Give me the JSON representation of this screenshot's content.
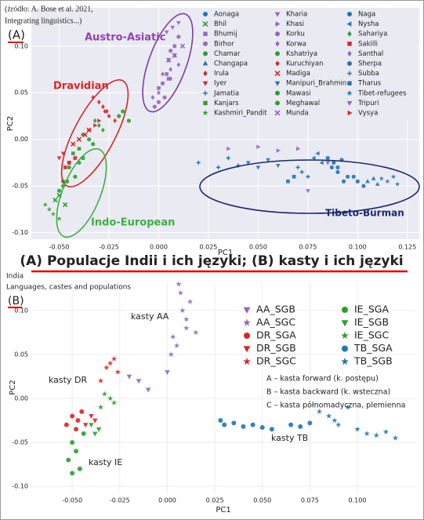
{
  "source_note": [
    "(źródło: A. Bose et al. 2021,",
    "Integrating linguistics...)"
  ],
  "panel_labels": [
    "(A)",
    "(B)"
  ],
  "caption": "(A) Populacje Indii i ich języki; (B) kasty i ich języki",
  "chart_data": [
    {
      "type": "scatter",
      "x_label": "PC1",
      "y_label": "PC2",
      "grid": true,
      "xlim": [
        -0.064,
        0.131
      ],
      "ylim": [
        -0.107,
        0.141
      ],
      "xticks": [
        {
          "value": -0.05,
          "label": "-0.050"
        },
        {
          "value": -0.025,
          "label": "-0.025"
        },
        {
          "value": 0,
          "label": "0.000"
        },
        {
          "value": 0.025,
          "label": "0.025"
        },
        {
          "value": 0.05,
          "label": "0.050"
        },
        {
          "value": 0.075,
          "label": "0.075"
        },
        {
          "value": 0.1,
          "label": "0.100"
        },
        {
          "value": 0.125,
          "label": "0.125"
        }
      ],
      "yticks": [
        {
          "value": -0.1,
          "label": "-0.10"
        },
        {
          "value": -0.05,
          "label": "-0.05"
        },
        {
          "value": 0,
          "label": "0.00"
        },
        {
          "value": 0.05,
          "label": "0.05"
        },
        {
          "value": 0.1,
          "label": "0.10"
        }
      ],
      "annotations": [
        {
          "text": "Austro-Asiatic",
          "color": "#8e44ad"
        },
        {
          "text": "Dravidian",
          "color": "#d62728"
        },
        {
          "text": "Indo-European",
          "color": "#3cb043"
        },
        {
          "text": "Tibeto-Burman",
          "color": "#1a2a6c"
        }
      ],
      "series": [
        {
          "name": "Aonaga",
          "color": "#1f77b4",
          "marker": "circle",
          "x": [
            0.085,
            0.088,
            0.092,
            0.09
          ],
          "values": [
            -0.02,
            -0.025,
            -0.022,
            -0.03
          ]
        },
        {
          "name": "Bhil",
          "color": "#2ca02c",
          "marker": "x",
          "x": [
            -0.05,
            -0.047,
            -0.052
          ],
          "values": [
            -0.06,
            -0.07,
            -0.065
          ]
        },
        {
          "name": "Bhumij",
          "color": "#9467bd",
          "marker": "square",
          "x": [
            0.002,
            0.005,
            0.0,
            0.004
          ],
          "values": [
            0.06,
            0.065,
            0.055,
            0.07
          ]
        },
        {
          "name": "Birhor",
          "color": "#9467bd",
          "marker": "circle",
          "x": [
            0.008,
            0.01,
            0.006
          ],
          "values": [
            0.1,
            0.11,
            0.095
          ]
        },
        {
          "name": "Chamar",
          "color": "#2ca02c",
          "marker": "circle",
          "x": [
            -0.045,
            -0.042,
            -0.048,
            -0.04
          ],
          "values": [
            -0.03,
            -0.04,
            -0.045,
            -0.025
          ]
        },
        {
          "name": "Changapa",
          "color": "#1f77b4",
          "marker": "tri-up",
          "x": [
            0.105,
            0.11,
            0.108
          ],
          "values": [
            -0.045,
            -0.048,
            -0.042
          ]
        },
        {
          "name": "Irula",
          "color": "#d62728",
          "marker": "diamond",
          "x": [
            -0.03,
            -0.028,
            -0.033,
            -0.026
          ],
          "values": [
            0.04,
            0.035,
            0.045,
            0.03
          ]
        },
        {
          "name": "Iyer",
          "color": "#d62728",
          "marker": "tri-down",
          "x": [
            -0.05,
            -0.048,
            -0.045
          ],
          "values": [
            -0.02,
            -0.015,
            -0.025
          ]
        },
        {
          "name": "Jamatia",
          "color": "#1f77b4",
          "marker": "plus",
          "x": [
            0.02,
            0.03,
            0.035,
            0.04
          ],
          "values": [
            -0.025,
            -0.03,
            -0.02,
            -0.028
          ]
        },
        {
          "name": "Kanjars",
          "color": "#2ca02c",
          "marker": "square",
          "x": [
            -0.04,
            -0.038,
            -0.043
          ],
          "values": [
            -0.01,
            -0.02,
            -0.015
          ]
        },
        {
          "name": "Kashmiri_Pandit",
          "color": "#2ca02c",
          "marker": "star",
          "x": [
            -0.055,
            -0.053,
            -0.05,
            -0.057
          ],
          "values": [
            -0.075,
            -0.08,
            -0.085,
            -0.07
          ]
        },
        {
          "name": "Kharia",
          "color": "#9467bd",
          "marker": "tri-down",
          "x": [
            0.007,
            0.01,
            0.004
          ],
          "values": [
            0.12,
            0.125,
            0.115
          ]
        },
        {
          "name": "Khasi",
          "color": "#9467bd",
          "marker": "tri-right",
          "x": [
            0.035,
            0.05,
            0.06,
            0.07
          ],
          "values": [
            -0.01,
            -0.008,
            -0.012,
            -0.01
          ]
        },
        {
          "name": "Korku",
          "color": "#9467bd",
          "marker": "circle",
          "x": [
            0.0,
            -0.002,
            0.003
          ],
          "values": [
            0.04,
            0.035,
            0.045
          ]
        },
        {
          "name": "Korwa",
          "color": "#9467bd",
          "marker": "diamond",
          "x": [
            0.005,
            0.008,
            0.01,
            0.006
          ],
          "values": [
            0.085,
            0.09,
            0.08,
            0.075
          ]
        },
        {
          "name": "Kshatriya",
          "color": "#2ca02c",
          "marker": "circle",
          "x": [
            -0.035,
            -0.033,
            -0.038
          ],
          "values": [
            0.0,
            -0.005,
            0.005
          ]
        },
        {
          "name": "Kuruchiyan",
          "color": "#d62728",
          "marker": "diamond",
          "x": [
            -0.025,
            -0.022,
            -0.027
          ],
          "values": [
            0.025,
            0.02,
            0.03
          ]
        },
        {
          "name": "Madiga",
          "color": "#d62728",
          "marker": "x",
          "x": [
            -0.04,
            -0.037,
            -0.043,
            -0.035
          ],
          "values": [
            0.0,
            0.005,
            -0.005,
            0.01
          ]
        },
        {
          "name": "Manipuri_Brahmin",
          "color": "#1f77b4",
          "marker": "tri-down",
          "x": [
            0.045,
            0.05,
            0.055,
            0.06
          ],
          "values": [
            -0.025,
            -0.03,
            -0.022,
            -0.028
          ]
        },
        {
          "name": "Mawasi",
          "color": "#2ca02c",
          "marker": "circle",
          "x": [
            -0.02,
            -0.018,
            -0.015
          ],
          "values": [
            0.025,
            0.03,
            0.02
          ]
        },
        {
          "name": "Meghawal",
          "color": "#2ca02c",
          "marker": "circle",
          "x": [
            -0.048,
            -0.05,
            -0.046
          ],
          "values": [
            -0.05,
            -0.055,
            -0.045
          ]
        },
        {
          "name": "Munda",
          "color": "#9467bd",
          "marker": "x",
          "x": [
            0.008,
            0.012,
            0.005
          ],
          "values": [
            0.09,
            0.1,
            0.085
          ]
        },
        {
          "name": "Naga",
          "color": "#1f77b4",
          "marker": "circle",
          "x": [
            0.09,
            0.095,
            0.087,
            0.093
          ],
          "values": [
            -0.035,
            -0.04,
            -0.03,
            -0.045
          ]
        },
        {
          "name": "Nysha",
          "color": "#1f77b4",
          "marker": "tri-left",
          "x": [
            0.078,
            0.08,
            0.082
          ],
          "values": [
            -0.02,
            -0.015,
            -0.025
          ]
        },
        {
          "name": "Sahariya",
          "color": "#2ca02c",
          "marker": "diamond",
          "x": [
            -0.03,
            -0.028,
            -0.032
          ],
          "values": [
            0.015,
            0.01,
            0.02
          ]
        },
        {
          "name": "Sakilli",
          "color": "#d62728",
          "marker": "square",
          "x": [
            -0.045,
            -0.042,
            -0.047
          ],
          "values": [
            -0.025,
            -0.02,
            -0.03
          ]
        },
        {
          "name": "Santhal",
          "color": "#9467bd",
          "marker": "diamond",
          "x": [
            0.0,
            0.002,
            0.006,
            -0.003
          ],
          "values": [
            0.05,
            0.07,
            0.065,
            0.045
          ]
        },
        {
          "name": "Sherpa",
          "color": "#1f77b4",
          "marker": "circle",
          "x": [
            0.1,
            0.103,
            0.098
          ],
          "values": [
            -0.045,
            -0.05,
            -0.04
          ]
        },
        {
          "name": "Subba",
          "color": "#1f77b4",
          "marker": "plus",
          "x": [
            0.07,
            0.072,
            0.075
          ],
          "values": [
            -0.03,
            -0.035,
            -0.04
          ]
        },
        {
          "name": "Tharus",
          "color": "#1f77b4",
          "marker": "square",
          "x": [
            0.065,
            0.068
          ],
          "values": [
            -0.045,
            -0.04
          ]
        },
        {
          "name": "Tibet-refugees",
          "color": "#1f77b4",
          "marker": "star",
          "x": [
            0.112,
            0.115,
            0.118,
            0.12
          ],
          "values": [
            -0.042,
            -0.045,
            -0.04,
            -0.048
          ]
        },
        {
          "name": "Tripuri",
          "color": "#9467bd",
          "marker": "tri-down",
          "x": [
            0.085,
            0.075
          ],
          "values": [
            -0.025,
            -0.055
          ]
        },
        {
          "name": "Vysya",
          "color": "#d62728",
          "marker": "tri-right",
          "x": [
            -0.035,
            -0.032,
            -0.03
          ],
          "values": [
            0.01,
            0.015,
            0.02
          ]
        }
      ]
    },
    {
      "type": "scatter",
      "title": "India",
      "subtitle": "Languages, castes and populations",
      "x_label": "PC1",
      "y_label": "PC2",
      "grid": true,
      "xlim": [
        -0.0715,
        0.1305
      ],
      "ylim": [
        -0.107,
        0.132
      ],
      "xticks": [
        {
          "value": -0.05,
          "label": "-0.050"
        },
        {
          "value": -0.025,
          "label": "-0.025"
        },
        {
          "value": 0,
          "label": "0.000"
        },
        {
          "value": 0.025,
          "label": "0.025"
        },
        {
          "value": 0.05,
          "label": "0.050"
        },
        {
          "value": 0.075,
          "label": "0.075"
        },
        {
          "value": 0.1,
          "label": "0.100"
        }
      ],
      "yticks": [
        {
          "value": -0.1,
          "label": "-0.10"
        },
        {
          "value": -0.05,
          "label": "-0.05"
        },
        {
          "value": 0,
          "label": "0.00"
        },
        {
          "value": 0.05,
          "label": "0.05"
        },
        {
          "value": 0.1,
          "label": "0.10"
        }
      ],
      "annotations": [
        {
          "text": "kasty AA"
        },
        {
          "text": "kasty DR"
        },
        {
          "text": "kasty IE"
        },
        {
          "text": "kasty TB"
        }
      ],
      "notes": [
        "A – kasta forward (k. postępu)",
        "B – kasta backward (k. wsteczna)",
        "C – kasta półnomadyczna, plemienna"
      ],
      "series": [
        {
          "name": "AA_SGB",
          "color": "#9467bd",
          "marker": "tri-down",
          "x": [
            -0.015,
            -0.01,
            -0.02,
            0.0
          ],
          "values": [
            0.02,
            0.01,
            0.025,
            0.03
          ]
        },
        {
          "name": "AA_SGC",
          "color": "#9467bd",
          "marker": "star",
          "x": [
            0.005,
            0.01,
            0.008,
            0.012,
            0.003,
            0.007,
            0.01,
            0.002,
            0.015,
            0.006
          ],
          "values": [
            0.06,
            0.08,
            0.1,
            0.11,
            0.07,
            0.12,
            0.09,
            0.05,
            0.075,
            0.13
          ]
        },
        {
          "name": "DR_SGA",
          "color": "#d62728",
          "marker": "circle",
          "x": [
            -0.05,
            -0.047,
            -0.053,
            -0.045,
            -0.048
          ],
          "values": [
            -0.02,
            -0.025,
            -0.03,
            -0.015,
            -0.035
          ]
        },
        {
          "name": "DR_SGB",
          "color": "#d62728",
          "marker": "tri-down",
          "x": [
            -0.04,
            -0.043,
            -0.038
          ],
          "values": [
            -0.02,
            -0.03,
            -0.025
          ]
        },
        {
          "name": "DR_SGC",
          "color": "#d62728",
          "marker": "star",
          "x": [
            -0.03,
            -0.028,
            -0.032,
            -0.026,
            -0.035
          ],
          "values": [
            0.04,
            0.045,
            0.035,
            0.03,
            0.02
          ]
        },
        {
          "name": "IE_SGA",
          "color": "#2ca02c",
          "marker": "circle",
          "x": [
            -0.05,
            -0.048,
            -0.052,
            -0.046,
            -0.044,
            -0.05
          ],
          "values": [
            -0.05,
            -0.06,
            -0.07,
            -0.08,
            -0.04,
            -0.085
          ]
        },
        {
          "name": "IE_SGB",
          "color": "#2ca02c",
          "marker": "tri-down",
          "x": [
            -0.04,
            -0.038,
            -0.036
          ],
          "values": [
            -0.03,
            -0.04,
            -0.035
          ]
        },
        {
          "name": "IE_SGC",
          "color": "#2ca02c",
          "marker": "star",
          "x": [
            -0.035,
            -0.03,
            -0.033,
            -0.028
          ],
          "values": [
            -0.01,
            0.0,
            0.005,
            -0.005
          ]
        },
        {
          "name": "TB_SGA",
          "color": "#1f77b4",
          "marker": "circle",
          "x": [
            0.03,
            0.035,
            0.04,
            0.045,
            0.05,
            0.055,
            0.065,
            0.07,
            0.075,
            0.028
          ],
          "values": [
            -0.03,
            -0.028,
            -0.032,
            -0.03,
            -0.033,
            -0.035,
            -0.03,
            -0.032,
            -0.028,
            -0.025
          ]
        },
        {
          "name": "TB_SGB",
          "color": "#1f77b4",
          "marker": "star",
          "x": [
            0.08,
            0.085,
            0.088,
            0.09,
            0.1,
            0.105,
            0.11,
            0.115,
            0.12,
            0.095
          ],
          "values": [
            -0.015,
            -0.02,
            -0.025,
            -0.03,
            -0.035,
            -0.04,
            -0.042,
            -0.038,
            -0.045,
            -0.01
          ]
        }
      ]
    }
  ]
}
